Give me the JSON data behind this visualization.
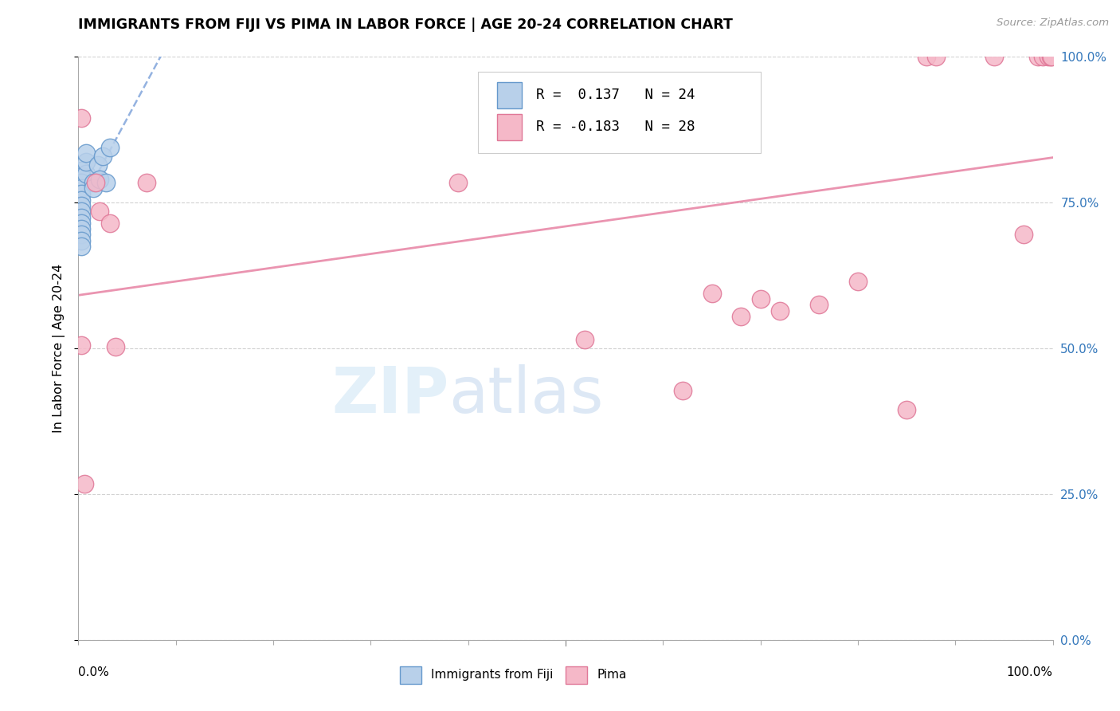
{
  "title": "IMMIGRANTS FROM FIJI VS PIMA IN LABOR FORCE | AGE 20-24 CORRELATION CHART",
  "source": "Source: ZipAtlas.com",
  "ylabel": "In Labor Force | Age 20-24",
  "ytick_values": [
    0,
    0.25,
    0.5,
    0.75,
    1.0
  ],
  "xlim": [
    0,
    1.0
  ],
  "ylim": [
    0,
    1.0
  ],
  "fiji_R": 0.137,
  "fiji_N": 24,
  "pima_R": -0.183,
  "pima_N": 28,
  "fiji_color": "#b8d0ea",
  "fiji_edge_color": "#6699cc",
  "pima_color": "#f5b8c8",
  "pima_edge_color": "#e07898",
  "fiji_trend_color": "#88aadd",
  "pima_trend_color": "#e888a8",
  "fiji_points_x": [
    0.003,
    0.003,
    0.003,
    0.003,
    0.003,
    0.003,
    0.003,
    0.003,
    0.003,
    0.003,
    0.003,
    0.003,
    0.003,
    0.003,
    0.008,
    0.008,
    0.008,
    0.015,
    0.015,
    0.02,
    0.022,
    0.025,
    0.028,
    0.032
  ],
  "fiji_points_y": [
    0.805,
    0.795,
    0.785,
    0.775,
    0.765,
    0.755,
    0.745,
    0.735,
    0.725,
    0.715,
    0.705,
    0.695,
    0.685,
    0.675,
    0.8,
    0.82,
    0.835,
    0.785,
    0.775,
    0.815,
    0.79,
    0.83,
    0.785,
    0.845
  ],
  "pima_points_x": [
    0.003,
    0.003,
    0.006,
    0.018,
    0.022,
    0.032,
    0.038,
    0.07,
    0.39,
    0.52,
    0.6,
    0.62,
    0.65,
    0.68,
    0.7,
    0.72,
    0.76,
    0.8,
    0.85,
    0.87,
    0.88,
    0.94,
    0.97,
    0.985,
    0.99,
    0.995,
    0.998,
    0.999
  ],
  "pima_points_y": [
    0.895,
    0.505,
    0.268,
    0.785,
    0.735,
    0.715,
    0.503,
    0.785,
    0.785,
    0.515,
    0.86,
    0.428,
    0.595,
    0.555,
    0.585,
    0.565,
    0.575,
    0.615,
    0.395,
    1.0,
    1.0,
    1.0,
    0.695,
    1.0,
    1.0,
    1.0,
    1.0,
    1.0
  ],
  "watermark_zip": "ZIP",
  "watermark_atlas": "atlas",
  "legend_fiji_text": "R =  0.137   N = 24",
  "legend_pima_text": "R = -0.183   N = 28"
}
